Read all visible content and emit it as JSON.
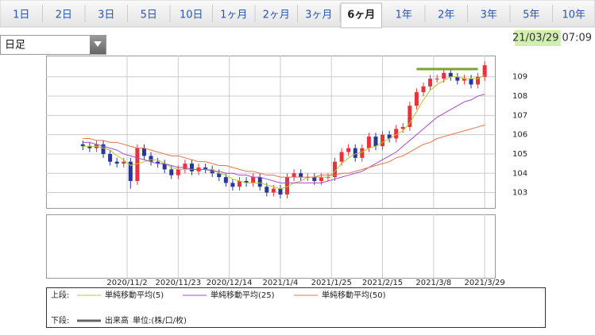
{
  "tabs": [
    "1日",
    "2日",
    "3日",
    "5日",
    "10日",
    "1ヶ月",
    "2ヶ月",
    "3ヶ月",
    "6ヶ月",
    "1年",
    "2年",
    "3年",
    "5年",
    "10年"
  ],
  "active_tab": 8,
  "interval_select": "日足",
  "timestamp": "21/03/29 07:09",
  "chart_data": {
    "type": "candlestick",
    "xlim": [
      -5.4,
      60.5
    ],
    "xticks": [
      {
        "value": 6.5,
        "label": "2020/11/2"
      },
      {
        "value": 14,
        "label": "2020/11/23"
      },
      {
        "value": 21.5,
        "label": "2020/12/14"
      },
      {
        "value": 29,
        "label": "2021/1/4"
      },
      {
        "value": 36.5,
        "label": "2021/1/25"
      },
      {
        "value": 44,
        "label": "2021/2/15"
      },
      {
        "value": 51.5,
        "label": "2021/3/8"
      },
      {
        "value": 59,
        "label": "2021/3/29"
      }
    ],
    "ylim": [
      102.2,
      110.1
    ],
    "yticks": [
      103,
      104,
      105,
      106,
      107,
      108,
      109
    ],
    "grid": true,
    "up_color": "#e8323c",
    "down_color": "#26379a",
    "ohlc": {
      "open": [
        105.5,
        105.4,
        105.3,
        105.5,
        105.0,
        104.6,
        104.5,
        104.6,
        103.6,
        105.3,
        104.9,
        104.6,
        104.5,
        104.2,
        103.9,
        104.2,
        104.5,
        104.1,
        104.3,
        104.2,
        104.0,
        103.8,
        103.5,
        103.3,
        103.6,
        103.5,
        103.8,
        103.3,
        103.0,
        103.2,
        102.9,
        103.8,
        104.0,
        103.8,
        103.8,
        103.6,
        103.8,
        103.8,
        104.6,
        105.1,
        105.3,
        104.8,
        105.3,
        105.9,
        105.4,
        106.0,
        105.8,
        106.3,
        106.4,
        107.5,
        108.2,
        108.5,
        108.9,
        108.9,
        109.2,
        109.0,
        108.8,
        108.9,
        108.6,
        109.0
      ],
      "high": [
        105.7,
        105.6,
        105.7,
        105.7,
        105.2,
        104.8,
        104.8,
        104.8,
        105.5,
        105.5,
        105.1,
        104.8,
        104.7,
        104.4,
        104.4,
        104.7,
        104.7,
        104.5,
        104.5,
        104.4,
        104.2,
        104.0,
        103.7,
        103.8,
        103.8,
        104.0,
        104.0,
        103.5,
        103.4,
        103.4,
        104.0,
        104.2,
        104.2,
        104.0,
        104.0,
        104.0,
        104.0,
        104.8,
        105.3,
        105.5,
        105.5,
        105.5,
        106.1,
        106.1,
        106.2,
        106.2,
        106.5,
        106.6,
        107.7,
        108.4,
        108.7,
        109.1,
        109.1,
        109.4,
        109.4,
        109.2,
        109.1,
        109.1,
        109.2,
        109.8
      ],
      "low": [
        105.2,
        105.1,
        105.1,
        104.8,
        104.4,
        104.3,
        104.3,
        103.2,
        103.4,
        104.7,
        104.4,
        104.3,
        104.0,
        103.7,
        103.7,
        104.0,
        103.9,
        103.9,
        104.0,
        103.8,
        103.6,
        103.3,
        103.1,
        103.1,
        103.3,
        103.3,
        103.1,
        102.8,
        102.8,
        102.7,
        102.7,
        103.6,
        103.6,
        103.6,
        103.4,
        103.4,
        103.6,
        103.6,
        104.4,
        104.9,
        104.6,
        104.6,
        105.1,
        105.2,
        105.2,
        105.6,
        105.6,
        106.1,
        106.2,
        107.3,
        108.0,
        108.3,
        108.7,
        108.7,
        108.8,
        108.6,
        108.6,
        108.4,
        108.4,
        108.8
      ],
      "close": [
        105.4,
        105.3,
        105.5,
        105.0,
        104.6,
        104.5,
        104.6,
        103.6,
        105.3,
        104.9,
        104.6,
        104.5,
        104.2,
        103.9,
        104.2,
        104.5,
        104.1,
        104.3,
        104.2,
        104.0,
        103.8,
        103.5,
        103.3,
        103.6,
        103.5,
        103.8,
        103.3,
        103.0,
        103.2,
        102.9,
        103.8,
        104.0,
        103.8,
        103.8,
        103.6,
        103.8,
        103.8,
        104.6,
        105.1,
        105.3,
        104.8,
        105.3,
        105.9,
        105.4,
        106.0,
        105.8,
        106.3,
        106.4,
        107.5,
        108.2,
        108.5,
        108.9,
        108.9,
        109.2,
        109.0,
        108.8,
        108.9,
        108.6,
        109.0,
        109.6
      ]
    },
    "series": [
      {
        "name": "単純移動平均(5)",
        "color": "#b3c92c",
        "values": [
          105.4,
          105.4,
          105.4,
          105.3,
          105.2,
          104.9,
          104.7,
          104.4,
          104.5,
          104.6,
          104.7,
          104.7,
          104.5,
          104.3,
          104.2,
          104.2,
          104.2,
          104.2,
          104.2,
          104.2,
          104.0,
          103.9,
          103.7,
          103.6,
          103.5,
          103.5,
          103.5,
          103.4,
          103.3,
          103.2,
          103.3,
          103.5,
          103.6,
          103.8,
          103.8,
          103.8,
          103.8,
          104.1,
          104.5,
          104.8,
          105.0,
          105.1,
          105.3,
          105.4,
          105.6,
          105.8,
          106.0,
          106.2,
          106.6,
          107.2,
          107.8,
          108.3,
          108.6,
          108.8,
          109.0,
          109.0,
          108.9,
          108.9,
          108.9,
          109.1
        ]
      },
      {
        "name": "単純移動平均(25)",
        "color": "#a64bd1",
        "values": [
          105.6,
          105.6,
          105.5,
          105.4,
          105.3,
          105.2,
          105.0,
          104.9,
          104.8,
          104.7,
          104.6,
          104.5,
          104.5,
          104.4,
          104.3,
          104.3,
          104.2,
          104.2,
          104.2,
          104.1,
          104.1,
          104.0,
          104.0,
          103.9,
          103.9,
          103.8,
          103.8,
          103.7,
          103.6,
          103.5,
          103.5,
          103.5,
          103.5,
          103.5,
          103.5,
          103.5,
          103.6,
          103.7,
          103.8,
          103.9,
          104.0,
          104.1,
          104.3,
          104.5,
          104.7,
          104.9,
          105.1,
          105.4,
          105.7,
          106.0,
          106.3,
          106.6,
          106.9,
          107.1,
          107.3,
          107.5,
          107.7,
          107.8,
          108.0,
          108.1
        ]
      },
      {
        "name": "単純移動平均(50)",
        "color": "#e8744a",
        "values": [
          105.8,
          105.8,
          105.7,
          105.7,
          105.6,
          105.6,
          105.5,
          105.4,
          105.3,
          105.3,
          105.2,
          105.1,
          105.0,
          104.9,
          104.9,
          104.8,
          104.7,
          104.6,
          104.6,
          104.5,
          104.4,
          104.4,
          104.3,
          104.2,
          104.1,
          104.1,
          104.0,
          103.9,
          103.9,
          103.8,
          103.8,
          103.8,
          103.8,
          103.8,
          103.8,
          103.9,
          103.9,
          103.9,
          104.0,
          104.0,
          104.1,
          104.2,
          104.3,
          104.4,
          104.5,
          104.6,
          104.8,
          104.9,
          105.1,
          105.3,
          105.5,
          105.6,
          105.8,
          105.9,
          106.0,
          106.1,
          106.2,
          106.3,
          106.4,
          106.5
        ]
      }
    ],
    "trend_line": {
      "y": 109.4,
      "x": [
        49,
        58
      ],
      "color": "#7aa33a"
    },
    "legend_upper": "上段:",
    "legend_lower": "下段:",
    "volume_name": "出来高",
    "volume_color": "#666666",
    "volume_unit": "単位:(株/口/枚)"
  }
}
